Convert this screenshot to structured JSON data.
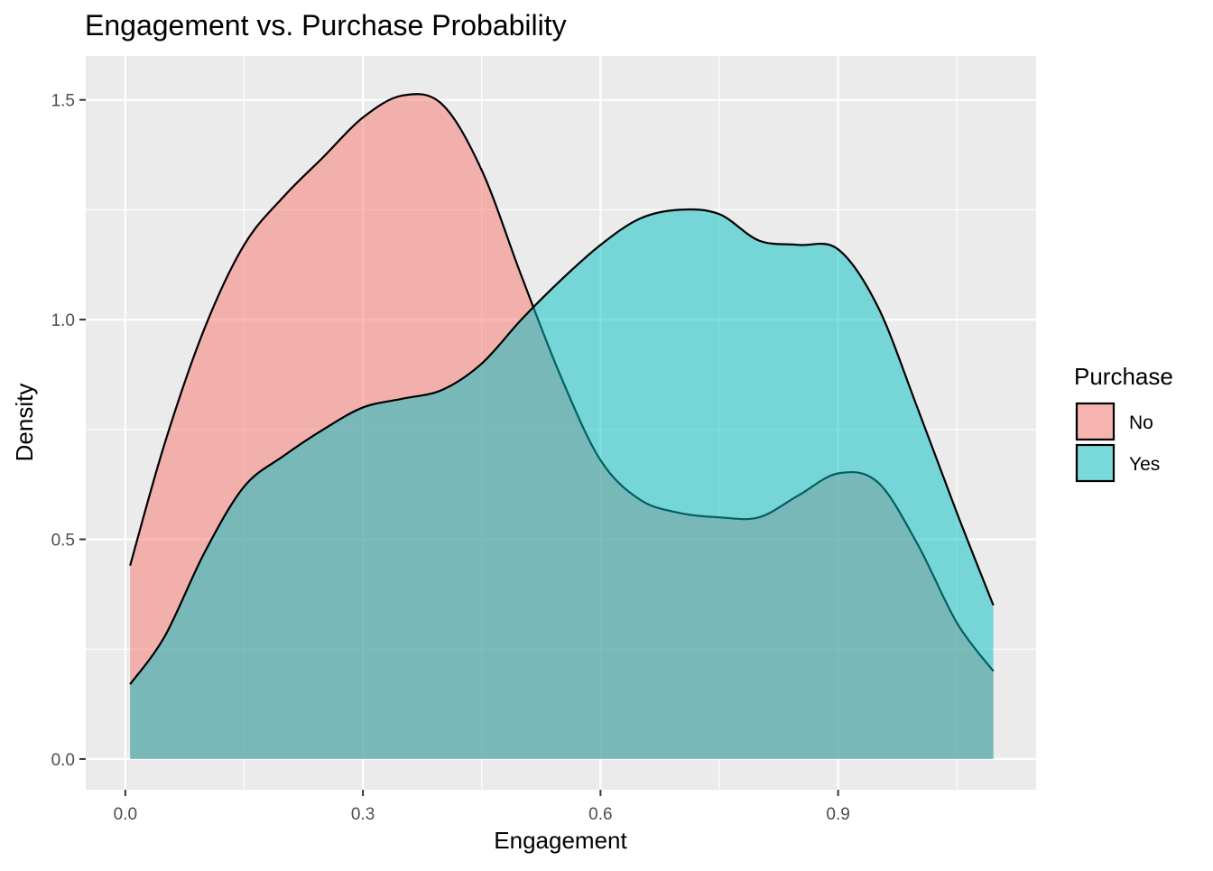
{
  "chart_data": {
    "type": "area",
    "title": "Engagement vs. Purchase Probability",
    "xlabel": "Engagement",
    "ylabel": "Density",
    "xlim": [
      -0.05,
      1.15
    ],
    "ylim": [
      -0.07,
      1.6
    ],
    "xticks": [
      0.0,
      0.3,
      0.6,
      0.9
    ],
    "xtick_labels": [
      "0.0",
      "0.3",
      "0.6",
      "0.9"
    ],
    "yticks": [
      0.0,
      0.5,
      1.0,
      1.5
    ],
    "ytick_labels": [
      "0.0",
      "0.5",
      "1.0",
      "1.5"
    ],
    "grid": true,
    "legend": {
      "title": "Purchase",
      "position": "right"
    },
    "series": [
      {
        "name": "No",
        "color": "#F8766D",
        "x": [
          0.006,
          0.05,
          0.1,
          0.15,
          0.2,
          0.25,
          0.3,
          0.35,
          0.4,
          0.45,
          0.5,
          0.55,
          0.6,
          0.65,
          0.7,
          0.75,
          0.8,
          0.85,
          0.9,
          0.95,
          1.0,
          1.05,
          1.096
        ],
        "y": [
          0.44,
          0.72,
          0.98,
          1.17,
          1.28,
          1.37,
          1.46,
          1.51,
          1.49,
          1.34,
          1.1,
          0.87,
          0.68,
          0.59,
          0.56,
          0.55,
          0.55,
          0.6,
          0.65,
          0.63,
          0.49,
          0.31,
          0.2
        ]
      },
      {
        "name": "Yes",
        "color": "#00BFC4",
        "x": [
          0.006,
          0.05,
          0.1,
          0.15,
          0.2,
          0.25,
          0.3,
          0.35,
          0.4,
          0.45,
          0.5,
          0.55,
          0.6,
          0.65,
          0.7,
          0.75,
          0.8,
          0.85,
          0.9,
          0.95,
          1.0,
          1.05,
          1.096
        ],
        "y": [
          0.17,
          0.28,
          0.47,
          0.62,
          0.69,
          0.75,
          0.8,
          0.82,
          0.84,
          0.9,
          1.0,
          1.09,
          1.17,
          1.23,
          1.25,
          1.24,
          1.18,
          1.17,
          1.16,
          1.03,
          0.8,
          0.56,
          0.35
        ]
      }
    ]
  }
}
